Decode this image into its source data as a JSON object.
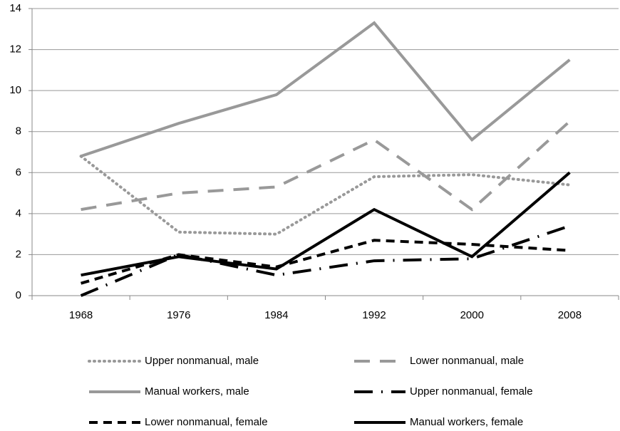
{
  "chart_data": {
    "type": "line",
    "categories": [
      "1968",
      "1976",
      "1984",
      "1992",
      "2000",
      "2008"
    ],
    "series": [
      {
        "name": "Upper nonmanual, male",
        "color": "#999999",
        "dash": "dotted",
        "values": [
          6.8,
          3.1,
          3.0,
          5.8,
          5.9,
          5.4
        ]
      },
      {
        "name": "Lower nonmanual, male",
        "color": "#999999",
        "dash": "dashed",
        "values": [
          4.2,
          5.0,
          5.3,
          7.6,
          4.2,
          8.5
        ]
      },
      {
        "name": "Manual workers, male",
        "color": "#999999",
        "dash": "solid",
        "values": [
          6.8,
          8.4,
          9.8,
          13.3,
          7.6,
          11.5
        ]
      },
      {
        "name": "Upper nonmanual, female",
        "color": "#000000",
        "dash": "dashdot",
        "values": [
          0.0,
          2.0,
          1.0,
          1.7,
          1.8,
          3.4
        ]
      },
      {
        "name": "Lower nonmanual, female",
        "color": "#000000",
        "dash": "shortdash",
        "values": [
          0.6,
          2.0,
          1.4,
          2.7,
          2.5,
          2.2
        ]
      },
      {
        "name": "Manual workers, female",
        "color": "#000000",
        "dash": "solid",
        "values": [
          1.0,
          1.9,
          1.3,
          4.2,
          1.9,
          6.0
        ]
      }
    ],
    "ylim": [
      0,
      14
    ],
    "yticks": [
      0,
      2,
      4,
      6,
      8,
      10,
      12,
      14
    ],
    "grid": true,
    "legend": "bottom"
  }
}
